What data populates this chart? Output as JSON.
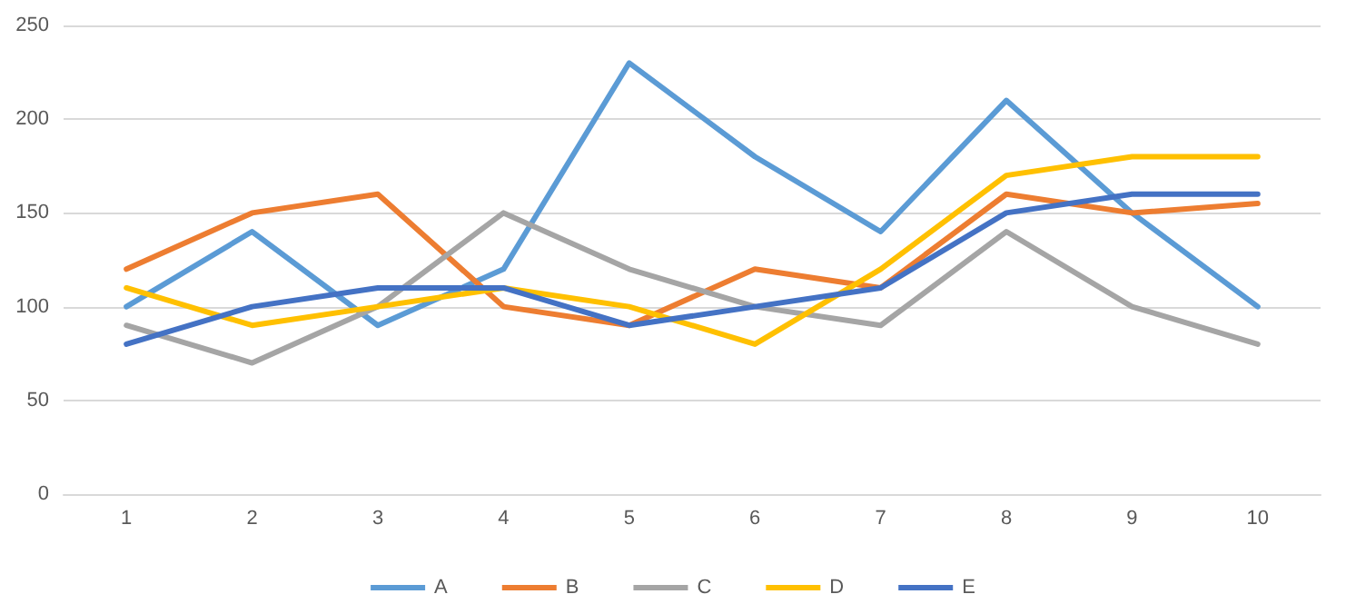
{
  "chart_data": {
    "type": "line",
    "categories": [
      "1",
      "2",
      "3",
      "4",
      "5",
      "6",
      "7",
      "8",
      "9",
      "10"
    ],
    "series": [
      {
        "name": "A",
        "color": "#5b9bd5",
        "values": [
          100,
          140,
          90,
          120,
          230,
          180,
          140,
          210,
          150,
          100
        ]
      },
      {
        "name": "B",
        "color": "#ed7d31",
        "values": [
          120,
          150,
          160,
          100,
          90,
          120,
          110,
          160,
          150,
          155
        ]
      },
      {
        "name": "C",
        "color": "#a5a5a5",
        "values": [
          90,
          70,
          100,
          150,
          120,
          100,
          90,
          140,
          100,
          80
        ]
      },
      {
        "name": "D",
        "color": "#ffc000",
        "values": [
          110,
          90,
          100,
          110,
          100,
          80,
          120,
          170,
          180,
          180
        ]
      },
      {
        "name": "E",
        "color": "#4472c4",
        "values": [
          80,
          100,
          110,
          110,
          90,
          100,
          110,
          150,
          160,
          160
        ]
      }
    ],
    "ylim": [
      0,
      250
    ],
    "yticks": [
      0,
      50,
      100,
      150,
      200,
      250
    ],
    "grid": "y",
    "legend": "bottom",
    "marker": "none",
    "line_style": "solid"
  }
}
